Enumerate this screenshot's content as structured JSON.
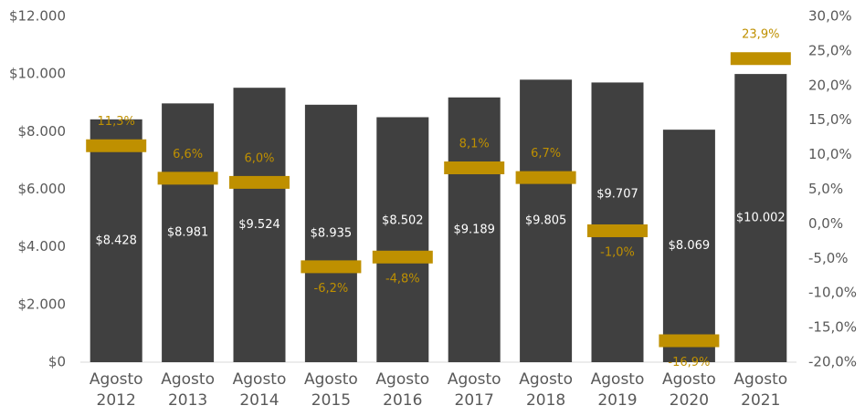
{
  "chart_data": {
    "type": "bar",
    "categories": [
      "Agosto 2012",
      "Agosto 2013",
      "Agosto 2014",
      "Agosto 2015",
      "Agosto 2016",
      "Agosto 2017",
      "Agosto 2018",
      "Agosto 2019",
      "Agosto 2020",
      "Agosto 2021"
    ],
    "series": [
      {
        "type": "bar",
        "color": "#404040",
        "label_color": "#ffffff",
        "values": [
          8428,
          8981,
          9524,
          8935,
          8502,
          9189,
          9805,
          9707,
          8069,
          10002
        ],
        "value_labels": [
          "$8.428",
          "$8.981",
          "$9.524",
          "$8.935",
          "$8.502",
          "$9.189",
          "$9.805",
          "$9.707",
          "$8.069",
          "$10.002"
        ]
      },
      {
        "type": "marker",
        "axis": "y2",
        "color": "#bf9000",
        "values": [
          11.3,
          6.6,
          6.0,
          -6.2,
          -4.8,
          8.1,
          6.7,
          -1.0,
          -16.9,
          23.9
        ],
        "value_labels": [
          "11,3%",
          "6,6%",
          "6,0%",
          "-6,2%",
          "-4,8%",
          "8,1%",
          "6,7%",
          "-1,0%",
          "-16,9%",
          "23,9%"
        ]
      }
    ],
    "ylim": [
      0,
      12000
    ],
    "yticks": [
      {
        "value": 0,
        "label": "$0"
      },
      {
        "value": 2000,
        "label": "$2.000"
      },
      {
        "value": 4000,
        "label": "$4.000"
      },
      {
        "value": 6000,
        "label": "$6.000"
      },
      {
        "value": 8000,
        "label": "$8.000"
      },
      {
        "value": 10000,
        "label": "$10.000"
      },
      {
        "value": 12000,
        "label": "$12.000"
      }
    ],
    "y2lim": [
      -20,
      30
    ],
    "y2ticks": [
      {
        "value": -20,
        "label": "-20,0%"
      },
      {
        "value": -15,
        "label": "-15,0%"
      },
      {
        "value": -10,
        "label": "-10,0%"
      },
      {
        "value": -5,
        "label": "-5,0%"
      },
      {
        "value": 0,
        "label": "0,0%"
      },
      {
        "value": 5,
        "label": "5,0%"
      },
      {
        "value": 10,
        "label": "10,0%"
      },
      {
        "value": 15,
        "label": "15,0%"
      },
      {
        "value": 20,
        "label": "20,0%"
      },
      {
        "value": 25,
        "label": "25,0%"
      },
      {
        "value": 30,
        "label": "30,0%"
      }
    ]
  }
}
